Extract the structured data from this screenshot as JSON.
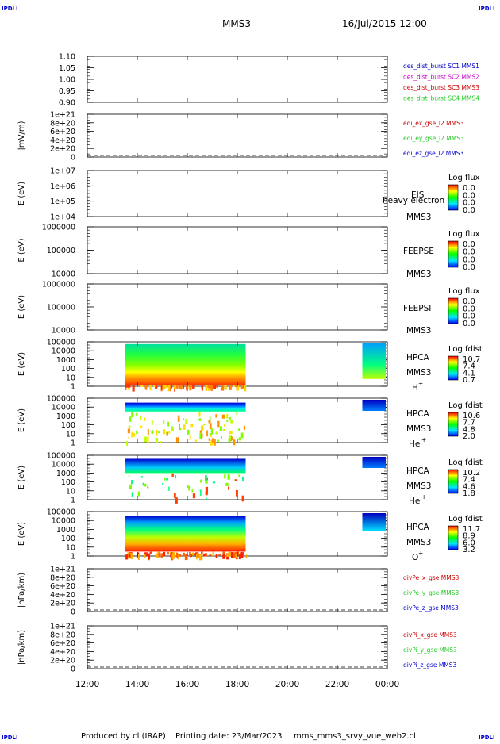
{
  "corner_label": "IPDLI",
  "header": {
    "spacecraft": "MMS3",
    "datetime": "16/Jul/2015 12:00"
  },
  "footer": {
    "produced_by": "Produced by cl (IRAP)",
    "printing_date": "Printing date: 23/Mar/2023",
    "script_name": "mms_mms3_srvy_vue_web2.cl"
  },
  "colors": {
    "red": "#cc0000",
    "green": "#22cc22",
    "blue": "#0000cc",
    "magenta": "#cc00cc",
    "panel_bg": "#ffffff",
    "axis": "#000000"
  },
  "chart_data": [
    {
      "type": "line",
      "ylabel": "",
      "ylim": [
        0.9,
        1.1
      ],
      "yticks": [
        "1.10",
        "1.05",
        "1.00",
        "0.95",
        "0.90"
      ],
      "legend": [
        {
          "text": "des_dist_burst SC1 MMS1",
          "color": "#0000cc"
        },
        {
          "text": "des_dist_burst SC2 MMS2",
          "color": "#cc00cc"
        },
        {
          "text": "des_dist_burst SC3 MMS3",
          "color": "#cc0000"
        },
        {
          "text": "des_dist_burst SC4 MMS4",
          "color": "#22cc22"
        }
      ]
    },
    {
      "type": "line",
      "ylabel": "|mV/m)",
      "ylim": [
        0,
        1e+21
      ],
      "yticks": [
        "1e+21",
        "8e+20",
        "6e+20",
        "4e+20",
        "2e+20",
        "0"
      ],
      "legend": [
        {
          "text": "edi_ex_gse_l2 MMS3",
          "color": "#cc0000"
        },
        {
          "text": "edi_ey_gse_l2 MMS3",
          "color": "#22cc22"
        },
        {
          "text": "edi_ez_gse_l2 MMS3",
          "color": "#0000cc"
        }
      ]
    },
    {
      "type": "heatmap",
      "ylabel": "E (eV)",
      "yticks": [
        "1e+07",
        "1e+06",
        "1e+05",
        "1e+04"
      ],
      "instrument": [
        "EIS",
        "MMS3"
      ],
      "overlap_text": "heavy electron to",
      "colorbar_title": "Log flux",
      "colorbar_ticks": [
        "0.0",
        "0.0",
        "0.0",
        "0.0"
      ]
    },
    {
      "type": "heatmap",
      "ylabel": "E (eV)",
      "yticks": [
        "1000000",
        "100000",
        "10000"
      ],
      "instrument": [
        "FEEPSE",
        "MMS3"
      ],
      "colorbar_title": "Log flux",
      "colorbar_ticks": [
        "0.0",
        "0.0",
        "0.0",
        "0.0"
      ]
    },
    {
      "type": "heatmap",
      "ylabel": "E (eV)",
      "yticks": [
        "1000000",
        "100000",
        "10000"
      ],
      "instrument": [
        "FEEPSI",
        "MMS3"
      ],
      "colorbar_title": "Log flux",
      "colorbar_ticks": [
        "0.0",
        "0.0",
        "0.0",
        "0.0"
      ]
    },
    {
      "type": "heatmap",
      "ylabel": "E (eV)",
      "yticks": [
        "100000",
        "10000",
        "1000",
        "100",
        "10",
        "1"
      ],
      "instrument": [
        "HPCA",
        "MMS3"
      ],
      "species": "H",
      "species_sup": "+",
      "colorbar_title": "Log fdist",
      "colorbar_ticks": [
        "10.7",
        "7.4",
        "4.1",
        "0.7"
      ]
    },
    {
      "type": "heatmap",
      "ylabel": "E (eV)",
      "yticks": [
        "100000",
        "10000",
        "1000",
        "100",
        "10",
        "1"
      ],
      "instrument": [
        "HPCA",
        "MMS3"
      ],
      "species": "He",
      "species_sup": "+",
      "colorbar_title": "Log fdist",
      "colorbar_ticks": [
        "10.6",
        "7.7",
        "4.8",
        "2.0"
      ]
    },
    {
      "type": "heatmap",
      "ylabel": "E (eV)",
      "yticks": [
        "100000",
        "10000",
        "1000",
        "100",
        "10",
        "1"
      ],
      "instrument": [
        "HPCA",
        "MMS3"
      ],
      "species": "He",
      "species_sup": "++",
      "colorbar_title": "Log fdist",
      "colorbar_ticks": [
        "10.2",
        "7.4",
        "4.6",
        "1.8"
      ]
    },
    {
      "type": "heatmap",
      "ylabel": "E (eV)",
      "yticks": [
        "100000",
        "10000",
        "1000",
        "100",
        "10",
        "1"
      ],
      "instrument": [
        "HPCA",
        "MMS3"
      ],
      "species": "O",
      "species_sup": "+",
      "colorbar_title": "Log fdist",
      "colorbar_ticks": [
        "11.7",
        "8.9",
        "6.0",
        "3.2"
      ]
    },
    {
      "type": "line",
      "ylabel": "|nPa/km)",
      "ylim": [
        0,
        1e+21
      ],
      "yticks": [
        "1e+21",
        "8e+20",
        "6e+20",
        "4e+20",
        "2e+20",
        "0"
      ],
      "legend": [
        {
          "text": "divPe_x_gse MMS3",
          "color": "#cc0000"
        },
        {
          "text": "divPe_y_gse MMS3",
          "color": "#22cc22"
        },
        {
          "text": "divPe_z_gse MMS3",
          "color": "#0000cc"
        }
      ]
    },
    {
      "type": "line",
      "ylabel": "|nPa/km)",
      "ylim": [
        0,
        1e+21
      ],
      "yticks": [
        "1e+21",
        "8e+20",
        "6e+20",
        "4e+20",
        "2e+20",
        "0"
      ],
      "legend": [
        {
          "text": "divPi_x_gse MMS3",
          "color": "#cc0000"
        },
        {
          "text": "divPi_y_gse MMS3",
          "color": "#22cc22"
        },
        {
          "text": "divPi_z_gse MMS3",
          "color": "#0000cc"
        }
      ]
    }
  ],
  "time_axis": {
    "labels": [
      "12:00",
      "14:00",
      "16:00",
      "18:00",
      "20:00",
      "22:00",
      "00:00"
    ],
    "data_intervals": [
      [
        "13:30",
        "18:20"
      ],
      [
        "23:00",
        "00:00"
      ]
    ]
  }
}
